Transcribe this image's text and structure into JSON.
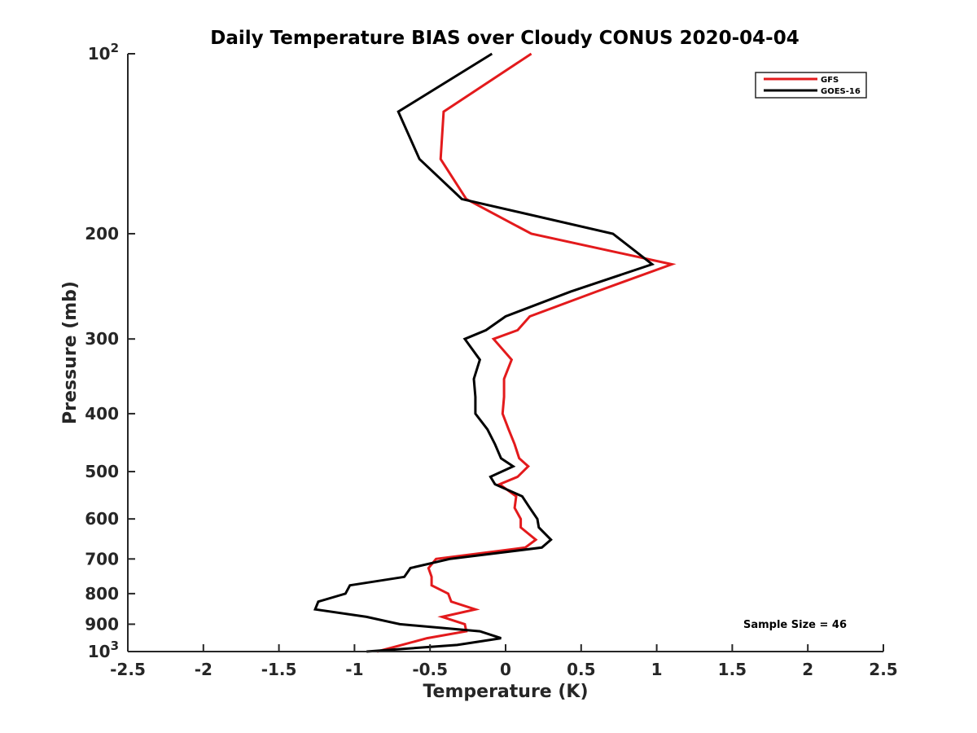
{
  "chart_data": {
    "type": "line",
    "title": "Daily Temperature BIAS over Cloudy CONUS 2020-04-04",
    "xlabel": "Temperature (K)",
    "ylabel": "Pressure (mb)",
    "xlim": [
      -2.5,
      2.5
    ],
    "ylim": [
      100,
      1000
    ],
    "y_scale": "log",
    "y_reversed": true,
    "x_ticks": [
      {
        "value": -2.5,
        "label": "-2.5"
      },
      {
        "value": -2,
        "label": "-2"
      },
      {
        "value": -1.5,
        "label": "-1.5"
      },
      {
        "value": -1,
        "label": "-1"
      },
      {
        "value": -0.5,
        "label": "-0.5"
      },
      {
        "value": 0,
        "label": "0"
      },
      {
        "value": 0.5,
        "label": "0.5"
      },
      {
        "value": 1,
        "label": "1"
      },
      {
        "value": 1.5,
        "label": "1.5"
      },
      {
        "value": 2,
        "label": "2"
      },
      {
        "value": 2.5,
        "label": "2.5"
      }
    ],
    "y_ticks": [
      {
        "value": 100,
        "base": "10",
        "exp": "2"
      },
      {
        "value": 200,
        "label": "200"
      },
      {
        "value": 300,
        "label": "300"
      },
      {
        "value": 400,
        "label": "400"
      },
      {
        "value": 500,
        "label": "500"
      },
      {
        "value": 600,
        "label": "600"
      },
      {
        "value": 700,
        "label": "700"
      },
      {
        "value": 800,
        "label": "800"
      },
      {
        "value": 900,
        "label": "900"
      },
      {
        "value": 1000,
        "base": "10",
        "exp": "3"
      }
    ],
    "grid": false,
    "legend_position": "top-right",
    "annotation": "Sample Size = 46",
    "series": [
      {
        "name": "GFS",
        "color": "#e31a1c",
        "points": [
          [
            0.17,
            100
          ],
          [
            -0.41,
            125
          ],
          [
            -0.43,
            150
          ],
          [
            -0.26,
            175
          ],
          [
            0.17,
            200
          ],
          [
            1.1,
            225
          ],
          [
            0.6,
            250
          ],
          [
            0.16,
            275
          ],
          [
            0.08,
            290
          ],
          [
            -0.08,
            300
          ],
          [
            0.04,
            325
          ],
          [
            -0.01,
            350
          ],
          [
            -0.01,
            375
          ],
          [
            -0.02,
            400
          ],
          [
            0.02,
            425
          ],
          [
            0.06,
            450
          ],
          [
            0.09,
            475
          ],
          [
            0.15,
            490
          ],
          [
            0.08,
            510
          ],
          [
            -0.04,
            525
          ],
          [
            0.07,
            550
          ],
          [
            0.06,
            575
          ],
          [
            0.1,
            600
          ],
          [
            0.1,
            620
          ],
          [
            0.2,
            650
          ],
          [
            0.13,
            670
          ],
          [
            -0.46,
            700
          ],
          [
            -0.51,
            725
          ],
          [
            -0.49,
            750
          ],
          [
            -0.49,
            775
          ],
          [
            -0.38,
            800
          ],
          [
            -0.36,
            825
          ],
          [
            -0.2,
            850
          ],
          [
            -0.42,
            875
          ],
          [
            -0.27,
            900
          ],
          [
            -0.26,
            925
          ],
          [
            -0.52,
            950
          ],
          [
            -0.85,
            1000
          ]
        ]
      },
      {
        "name": "GOES-16",
        "color": "#000000",
        "points": [
          [
            -0.09,
            100
          ],
          [
            -0.71,
            125
          ],
          [
            -0.57,
            150
          ],
          [
            -0.29,
            175
          ],
          [
            0.71,
            200
          ],
          [
            0.97,
            225
          ],
          [
            0.43,
            250
          ],
          [
            0.0,
            275
          ],
          [
            -0.13,
            290
          ],
          [
            -0.27,
            300
          ],
          [
            -0.17,
            325
          ],
          [
            -0.21,
            350
          ],
          [
            -0.2,
            375
          ],
          [
            -0.2,
            400
          ],
          [
            -0.12,
            425
          ],
          [
            -0.07,
            450
          ],
          [
            -0.03,
            475
          ],
          [
            0.05,
            490
          ],
          [
            -0.1,
            510
          ],
          [
            -0.07,
            525
          ],
          [
            0.11,
            550
          ],
          [
            0.16,
            575
          ],
          [
            0.21,
            600
          ],
          [
            0.22,
            620
          ],
          [
            0.3,
            650
          ],
          [
            0.24,
            670
          ],
          [
            -0.37,
            700
          ],
          [
            -0.63,
            725
          ],
          [
            -0.67,
            750
          ],
          [
            -1.03,
            775
          ],
          [
            -1.06,
            800
          ],
          [
            -1.24,
            825
          ],
          [
            -1.26,
            850
          ],
          [
            -0.92,
            875
          ],
          [
            -0.7,
            900
          ],
          [
            -0.17,
            925
          ],
          [
            -0.03,
            950
          ],
          [
            -0.32,
            975
          ],
          [
            -0.92,
            1000
          ]
        ]
      }
    ]
  }
}
